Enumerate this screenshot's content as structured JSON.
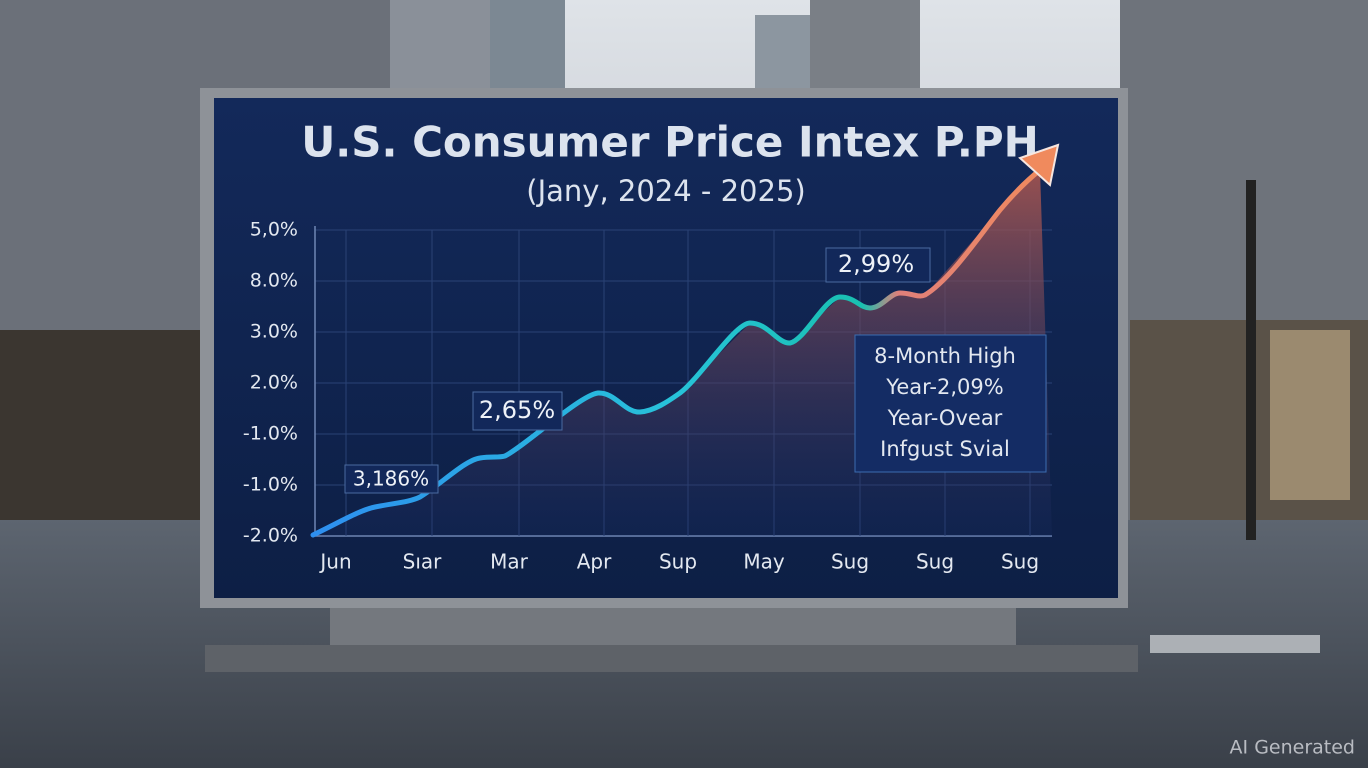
{
  "sign": {
    "title": "U.S. Consumer Price Intex P.PH",
    "subtitle": "(Jany, 2024 - 2025)",
    "y_labels": [
      "5,0%",
      "8.0%",
      "3.0%",
      "2.0%",
      "-1.0%",
      "-1.0%",
      "-2.0%"
    ],
    "x_labels": [
      "Jun",
      "Sıar",
      "Mar",
      "Apr",
      "Sup",
      "May",
      "Sug",
      "Sug",
      "Sug"
    ],
    "annotations": [
      "3,186%",
      "2,65%",
      "2,99%"
    ],
    "callout": [
      "8-Month High",
      "Year-2,09%",
      "Year-Ovear",
      "Infgust Svial"
    ]
  },
  "watermark": "AI Generated"
}
